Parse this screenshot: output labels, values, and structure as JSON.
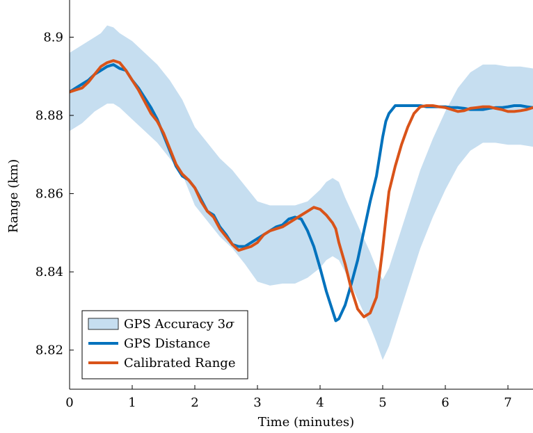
{
  "chart_data": {
    "type": "line",
    "title": "",
    "xlabel": "Time (minutes)",
    "ylabel": "Range (km)",
    "xlim": [
      0,
      7.4
    ],
    "ylim": [
      8.81,
      8.9095
    ],
    "xticks": [
      0,
      1,
      2,
      3,
      4,
      5,
      6,
      7
    ],
    "yticks": [
      8.82,
      8.84,
      8.86,
      8.88,
      8.9
    ],
    "ytick_labels": [
      "8.82",
      "8.84",
      "8.86",
      "8.88",
      "8.9"
    ],
    "grid": false,
    "legend_position": "bottom-left",
    "band": {
      "name": "GPS Accuracy 3σ",
      "label_text": "GPS Accuracy 3",
      "label_symbol": "σ",
      "color": "#c6def0",
      "x": [
        0,
        0.2,
        0.4,
        0.5,
        0.6,
        0.7,
        0.8,
        1.0,
        1.2,
        1.4,
        1.6,
        1.8,
        2.0,
        2.2,
        2.4,
        2.6,
        2.8,
        3.0,
        3.2,
        3.4,
        3.6,
        3.8,
        4.0,
        4.1,
        4.2,
        4.3,
        4.4,
        4.6,
        4.8,
        4.9,
        5.0,
        5.1,
        5.2,
        5.4,
        5.6,
        5.8,
        6.0,
        6.2,
        6.4,
        6.5,
        6.6,
        6.8,
        7.0,
        7.2,
        7.4
      ],
      "upper": [
        8.896,
        8.898,
        8.9,
        8.901,
        8.903,
        8.9025,
        8.901,
        8.899,
        8.896,
        8.893,
        8.889,
        8.884,
        8.877,
        8.873,
        8.869,
        8.866,
        8.862,
        8.858,
        8.857,
        8.857,
        8.857,
        8.858,
        8.861,
        8.863,
        8.864,
        8.863,
        8.859,
        8.852,
        8.845,
        8.841,
        8.838,
        8.841,
        8.846,
        8.856,
        8.866,
        8.874,
        8.881,
        8.887,
        8.891,
        8.892,
        8.893,
        8.893,
        8.8925,
        8.8925,
        8.892
      ],
      "lower": [
        8.876,
        8.878,
        8.881,
        8.882,
        8.883,
        8.883,
        8.882,
        8.879,
        8.876,
        8.873,
        8.869,
        8.865,
        8.857,
        8.853,
        8.849,
        8.846,
        8.842,
        8.8375,
        8.8365,
        8.837,
        8.837,
        8.8385,
        8.841,
        8.843,
        8.844,
        8.843,
        8.84,
        8.833,
        8.826,
        8.822,
        8.8175,
        8.821,
        8.826,
        8.836,
        8.846,
        8.854,
        8.861,
        8.867,
        8.871,
        8.872,
        8.873,
        8.873,
        8.8725,
        8.8725,
        8.872
      ]
    },
    "series": [
      {
        "name": "GPS Distance",
        "color": "#0072bd",
        "x": [
          0,
          0.1,
          0.2,
          0.3,
          0.4,
          0.5,
          0.6,
          0.7,
          0.8,
          0.9,
          1.0,
          1.1,
          1.2,
          1.3,
          1.4,
          1.5,
          1.6,
          1.7,
          1.8,
          1.9,
          2.0,
          2.1,
          2.2,
          2.3,
          2.4,
          2.5,
          2.6,
          2.7,
          2.8,
          2.9,
          3.0,
          3.1,
          3.2,
          3.3,
          3.4,
          3.5,
          3.6,
          3.7,
          3.8,
          3.9,
          4.0,
          4.1,
          4.2,
          4.25,
          4.3,
          4.4,
          4.5,
          4.6,
          4.7,
          4.8,
          4.9,
          4.95,
          5.0,
          5.05,
          5.1,
          5.2,
          5.3,
          5.4,
          5.5,
          5.6,
          5.7,
          5.8,
          5.9,
          6.0,
          6.1,
          6.2,
          6.3,
          6.4,
          6.5,
          6.6,
          6.7,
          6.8,
          6.9,
          7.0,
          7.1,
          7.2,
          7.3,
          7.4
        ],
        "y": [
          8.886,
          8.887,
          8.888,
          8.889,
          8.8905,
          8.8915,
          8.8925,
          8.893,
          8.892,
          8.8915,
          8.889,
          8.887,
          8.8845,
          8.882,
          8.879,
          8.875,
          8.871,
          8.867,
          8.8645,
          8.8635,
          8.8615,
          8.8585,
          8.8555,
          8.8545,
          8.8515,
          8.8495,
          8.847,
          8.8465,
          8.8465,
          8.8475,
          8.8485,
          8.8495,
          8.8505,
          8.8515,
          8.852,
          8.8535,
          8.854,
          8.8535,
          8.8505,
          8.8465,
          8.841,
          8.835,
          8.83,
          8.8275,
          8.828,
          8.8315,
          8.837,
          8.843,
          8.8505,
          8.858,
          8.8645,
          8.8695,
          8.8745,
          8.8785,
          8.8805,
          8.8825,
          8.8825,
          8.8825,
          8.8825,
          8.8825,
          8.8822,
          8.8822,
          8.8822,
          8.8822,
          8.882,
          8.882,
          8.8818,
          8.8815,
          8.8815,
          8.8815,
          8.8818,
          8.882,
          8.882,
          8.8822,
          8.8825,
          8.8825,
          8.8822,
          8.882
        ]
      },
      {
        "name": "Calibrated Range",
        "color": "#d95319",
        "x": [
          0,
          0.1,
          0.2,
          0.3,
          0.4,
          0.5,
          0.6,
          0.7,
          0.8,
          0.9,
          1.0,
          1.1,
          1.2,
          1.3,
          1.4,
          1.5,
          1.6,
          1.7,
          1.8,
          1.9,
          2.0,
          2.1,
          2.2,
          2.3,
          2.4,
          2.5,
          2.6,
          2.7,
          2.8,
          2.9,
          3.0,
          3.1,
          3.2,
          3.3,
          3.4,
          3.5,
          3.6,
          3.7,
          3.8,
          3.9,
          4.0,
          4.1,
          4.2,
          4.25,
          4.3,
          4.4,
          4.5,
          4.6,
          4.7,
          4.8,
          4.9,
          4.95,
          5.0,
          5.05,
          5.1,
          5.2,
          5.3,
          5.4,
          5.5,
          5.6,
          5.7,
          5.8,
          5.9,
          6.0,
          6.1,
          6.2,
          6.3,
          6.4,
          6.5,
          6.6,
          6.7,
          6.8,
          6.9,
          7.0,
          7.1,
          7.2,
          7.3,
          7.4
        ],
        "y": [
          8.886,
          8.8865,
          8.887,
          8.8885,
          8.8905,
          8.8925,
          8.8935,
          8.894,
          8.8935,
          8.8915,
          8.889,
          8.8865,
          8.8835,
          8.8805,
          8.8785,
          8.8755,
          8.8715,
          8.8675,
          8.865,
          8.8635,
          8.8615,
          8.858,
          8.8555,
          8.854,
          8.851,
          8.849,
          8.847,
          8.8455,
          8.846,
          8.8465,
          8.8475,
          8.8495,
          8.8505,
          8.851,
          8.8515,
          8.8525,
          8.8535,
          8.8545,
          8.8555,
          8.8565,
          8.856,
          8.8545,
          8.8525,
          8.851,
          8.8475,
          8.842,
          8.8355,
          8.8305,
          8.8285,
          8.8295,
          8.8335,
          8.8395,
          8.846,
          8.8535,
          8.8605,
          8.867,
          8.8725,
          8.877,
          8.8805,
          8.8822,
          8.8825,
          8.8825,
          8.8822,
          8.882,
          8.8815,
          8.881,
          8.8812,
          8.8818,
          8.882,
          8.8822,
          8.8822,
          8.8818,
          8.8815,
          8.881,
          8.881,
          8.8812,
          8.8815,
          8.882
        ]
      }
    ]
  }
}
